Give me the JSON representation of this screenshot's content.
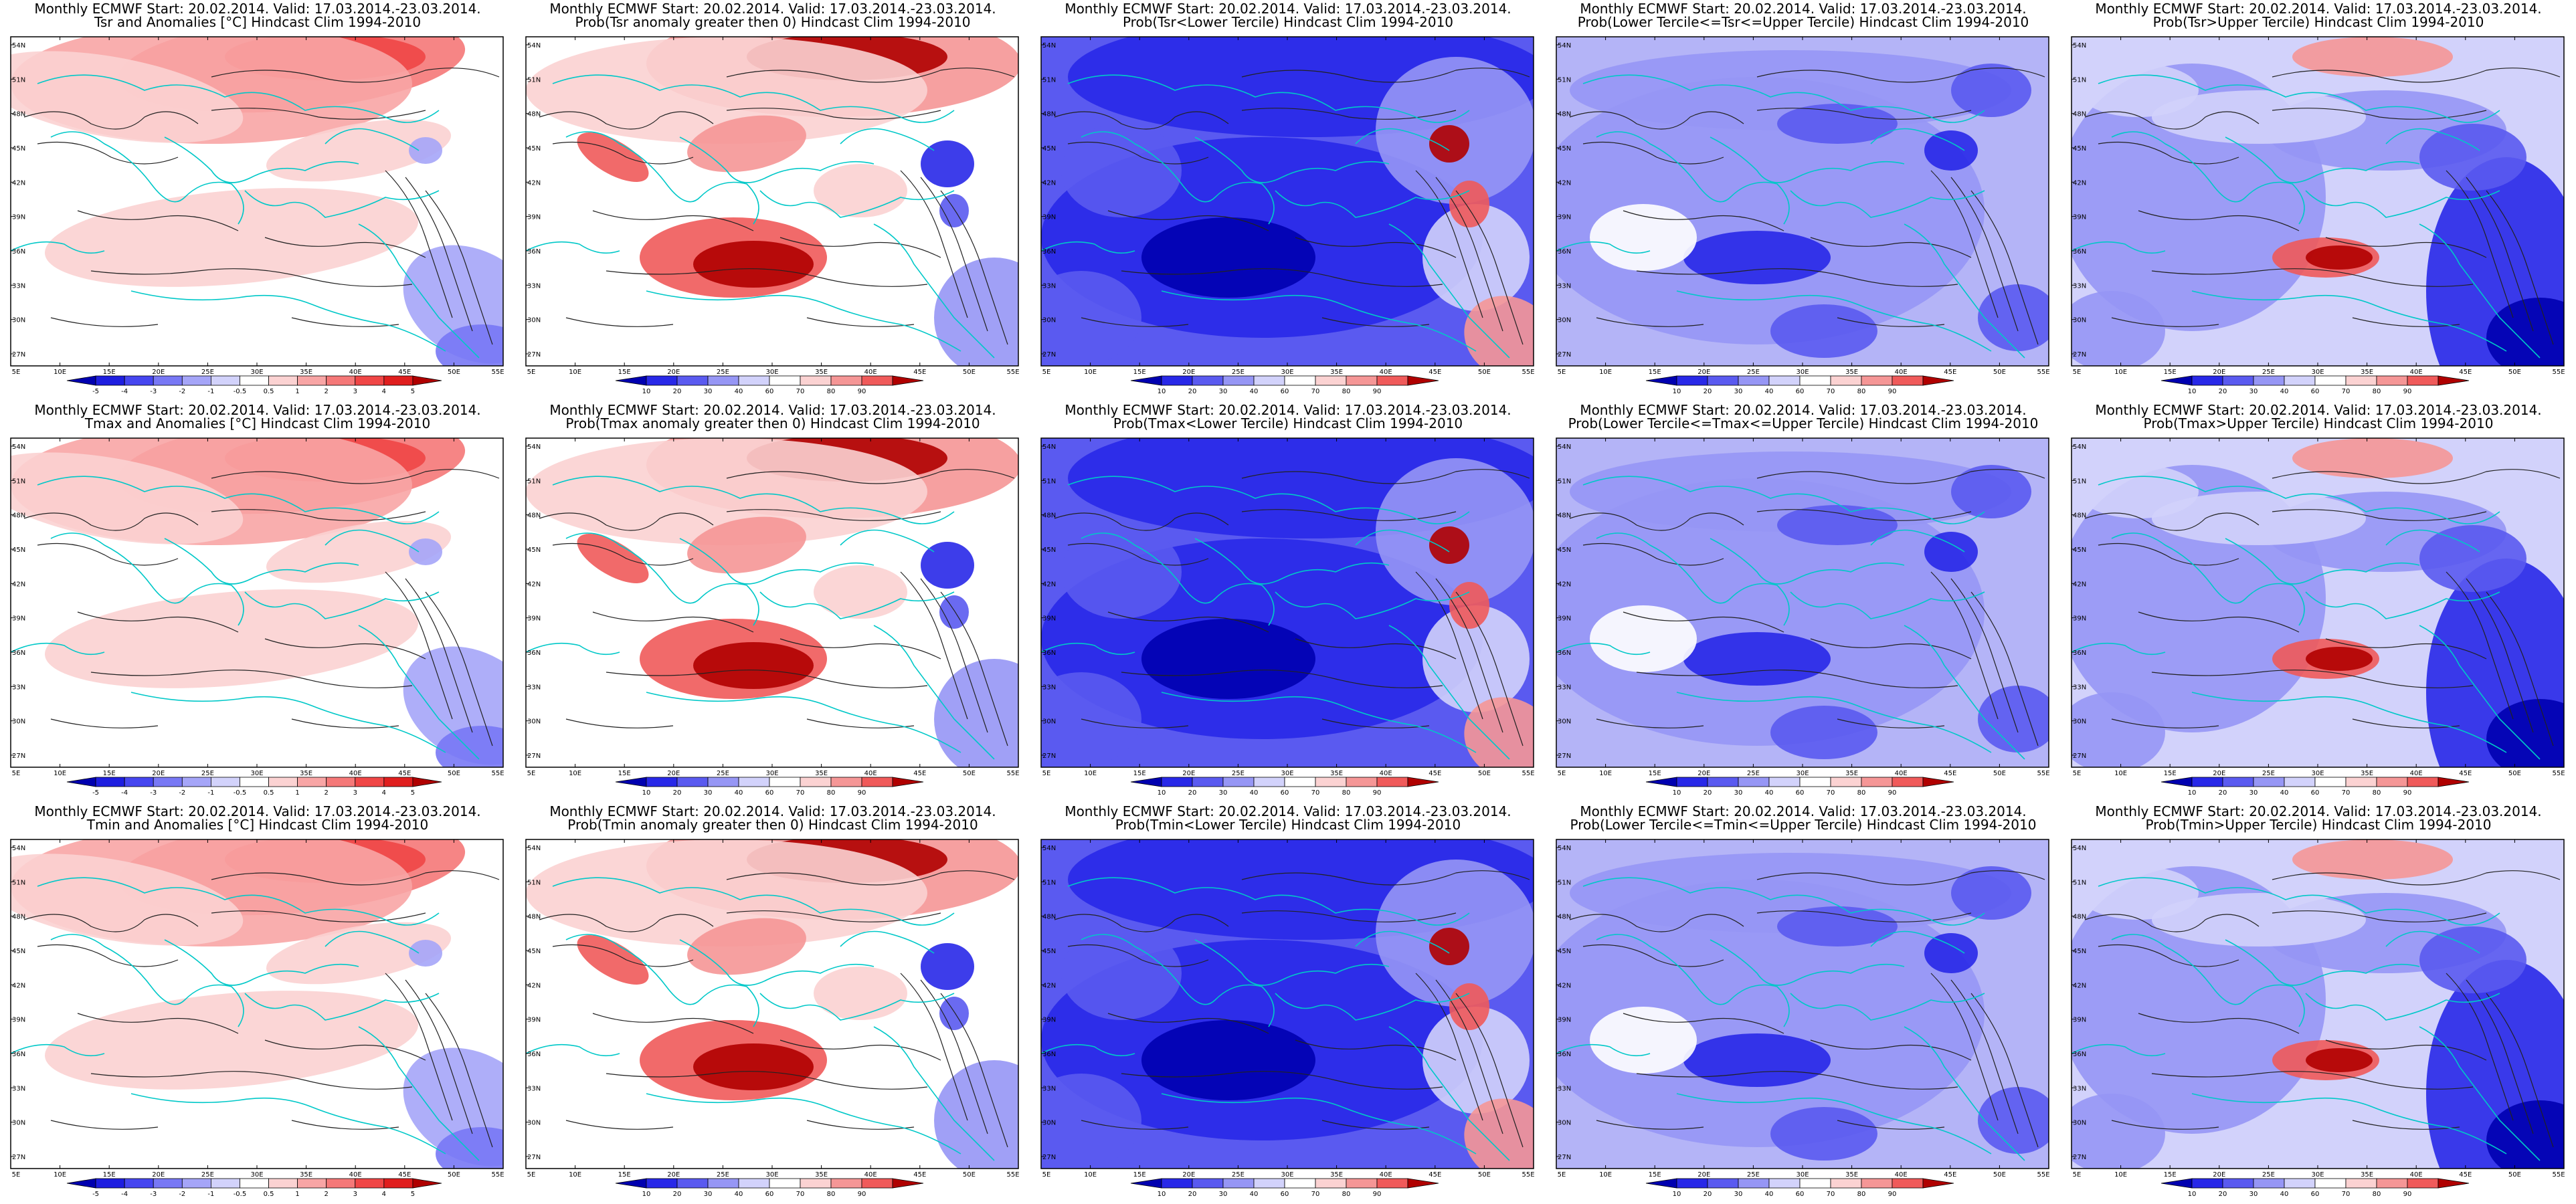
{
  "map": {
    "lon_ticks": [
      "5E",
      "10E",
      "15E",
      "20E",
      "25E",
      "30E",
      "35E",
      "40E",
      "45E",
      "50E",
      "55E"
    ],
    "lat_ticks": [
      "54N",
      "51N",
      "48N",
      "45N",
      "42N",
      "39N",
      "36N",
      "33N",
      "30N",
      "27N"
    ],
    "colors": {
      "coast": "#00c8c8",
      "contour": "#222222"
    }
  },
  "scales": {
    "anomaly": {
      "labels": [
        "-5",
        "-4",
        "-3",
        "-2",
        "-1",
        "-0.5",
        "0.5",
        "1",
        "2",
        "3",
        "4",
        "5"
      ],
      "colors": [
        "#0000b0",
        "#1e1ee0",
        "#4646f0",
        "#7878f5",
        "#a5a5f8",
        "#d2d2fb",
        "#ffffff",
        "#fbd2d2",
        "#f8a5a5",
        "#f57878",
        "#f04646",
        "#e01e1e",
        "#b00000"
      ]
    },
    "prob": {
      "labels": [
        "10",
        "20",
        "30",
        "40",
        "60",
        "70",
        "80",
        "90"
      ],
      "colors": [
        "#0000b0",
        "#2828e8",
        "#5a5af0",
        "#9696f5",
        "#d2d2fb",
        "#ffffff",
        "#fbd2d2",
        "#f59696",
        "#f05a5a",
        "#b00000"
      ]
    }
  },
  "panels": [
    {
      "row": 0,
      "col": 0,
      "title1": "Monthly ECMWF Start: 20.02.2014. Valid: 17.03.2014.-23.03.2014.",
      "title2": "Tsr and Anomalies [°C] Hindcast Clim 1994-2010",
      "scale": "anomaly",
      "field": "warmN"
    },
    {
      "row": 0,
      "col": 1,
      "title1": "Monthly ECMWF Start: 20.02.2014. Valid: 17.03.2014.-23.03.2014.",
      "title2": "Prob(Tsr anomaly greater then 0) Hindcast Clim 1994-2010",
      "scale": "prob",
      "field": "probWarm"
    },
    {
      "row": 0,
      "col": 2,
      "title1": "Monthly ECMWF Start: 20.02.2014. Valid: 17.03.2014.-23.03.2014.",
      "title2": "Prob(Tsr<Lower Tercile) Hindcast Clim 1994-2010",
      "scale": "prob",
      "field": "lowerT"
    },
    {
      "row": 0,
      "col": 3,
      "title1": "Monthly ECMWF Start: 20.02.2014. Valid: 17.03.2014.-23.03.2014.",
      "title2": "Prob(Lower Tercile<=Tsr<=Upper Tercile) Hindcast Clim 1994-2010",
      "scale": "prob",
      "field": "middleT"
    },
    {
      "row": 0,
      "col": 4,
      "title1": "Monthly ECMWF Start: 20.02.2014. Valid: 17.03.2014.-23.03.2014.",
      "title2": "Prob(Tsr>Upper Tercile) Hindcast Clim 1994-2010",
      "scale": "prob",
      "field": "upperT"
    },
    {
      "row": 1,
      "col": 0,
      "title1": "Monthly ECMWF Start: 20.02.2014. Valid: 17.03.2014.-23.03.2014.",
      "title2": "Tmax and Anomalies [°C] Hindcast Clim 1994-2010",
      "scale": "anomaly",
      "field": "warmN"
    },
    {
      "row": 1,
      "col": 1,
      "title1": "Monthly ECMWF Start: 20.02.2014. Valid: 17.03.2014.-23.03.2014.",
      "title2": "Prob(Tmax anomaly greater then 0) Hindcast Clim 1994-2010",
      "scale": "prob",
      "field": "probWarm"
    },
    {
      "row": 1,
      "col": 2,
      "title1": "Monthly ECMWF Start: 20.02.2014. Valid: 17.03.2014.-23.03.2014.",
      "title2": "Prob(Tmax<Lower Tercile) Hindcast Clim 1994-2010",
      "scale": "prob",
      "field": "lowerT"
    },
    {
      "row": 1,
      "col": 3,
      "title1": "Monthly ECMWF Start: 20.02.2014. Valid: 17.03.2014.-23.03.2014.",
      "title2": "Prob(Lower Tercile<=Tmax<=Upper Tercile) Hindcast Clim 1994-2010",
      "scale": "prob",
      "field": "middleT"
    },
    {
      "row": 1,
      "col": 4,
      "title1": "Monthly ECMWF Start: 20.02.2014. Valid: 17.03.2014.-23.03.2014.",
      "title2": "Prob(Tmax>Upper Tercile) Hindcast Clim 1994-2010",
      "scale": "prob",
      "field": "upperT"
    },
    {
      "row": 2,
      "col": 0,
      "title1": "Monthly ECMWF Start: 20.02.2014. Valid: 17.03.2014.-23.03.2014.",
      "title2": "Tmin and Anomalies [°C] Hindcast Clim 1994-2010",
      "scale": "anomaly",
      "field": "warmN"
    },
    {
      "row": 2,
      "col": 1,
      "title1": "Monthly ECMWF Start: 20.02.2014. Valid: 17.03.2014.-23.03.2014.",
      "title2": "Prob(Tmin anomaly greater then 0) Hindcast Clim 1994-2010",
      "scale": "prob",
      "field": "probWarm"
    },
    {
      "row": 2,
      "col": 2,
      "title1": "Monthly ECMWF Start: 20.02.2014. Valid: 17.03.2014.-23.03.2014.",
      "title2": "Prob(Tmin<Lower Tercile) Hindcast Clim 1994-2010",
      "scale": "prob",
      "field": "lowerT"
    },
    {
      "row": 2,
      "col": 3,
      "title1": "Monthly ECMWF Start: 20.02.2014. Valid: 17.03.2014.-23.03.2014.",
      "title2": "Prob(Lower Tercile<=Tmin<=Upper Tercile) Hindcast Clim 1994-2010",
      "scale": "prob",
      "field": "middleT"
    },
    {
      "row": 2,
      "col": 4,
      "title1": "Monthly ECMWF Start: 20.02.2014. Valid: 17.03.2014.-23.03.2014.",
      "title2": "Prob(Tmin>Upper Tercile) Hindcast Clim 1994-2010",
      "scale": "prob",
      "field": "upperT"
    }
  ]
}
